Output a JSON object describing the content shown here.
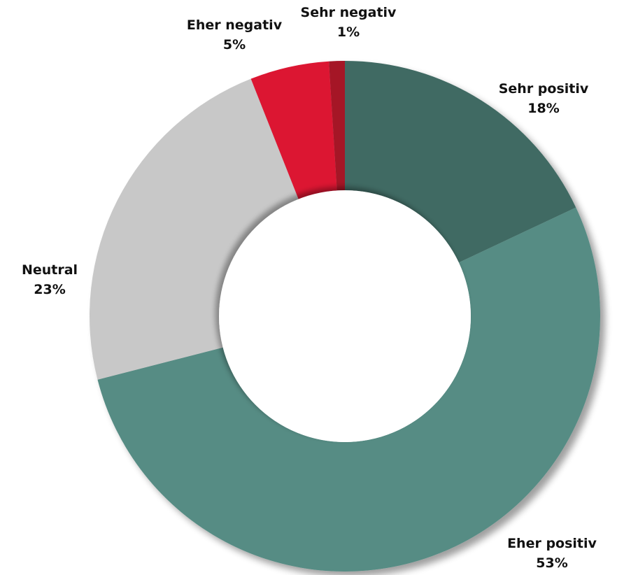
{
  "chart_data": {
    "type": "pie",
    "variant": "donut",
    "title": "",
    "slices": [
      {
        "label": "Sehr positiv",
        "value": 18,
        "display": "18%",
        "color": "#416b64"
      },
      {
        "label": "Eher positiv",
        "value": 53,
        "display": "53%",
        "color": "#578c84"
      },
      {
        "label": "Neutral",
        "value": 23,
        "display": "23%",
        "color": "#c8c8c8"
      },
      {
        "label": "Eher negativ",
        "value": 5,
        "display": "5%",
        "color": "#dc1733"
      },
      {
        "label": "Sehr negativ",
        "value": 1,
        "display": "1%",
        "color": "#a51328"
      }
    ],
    "legend": "none",
    "start_angle_deg": 0,
    "direction": "clockwise"
  }
}
